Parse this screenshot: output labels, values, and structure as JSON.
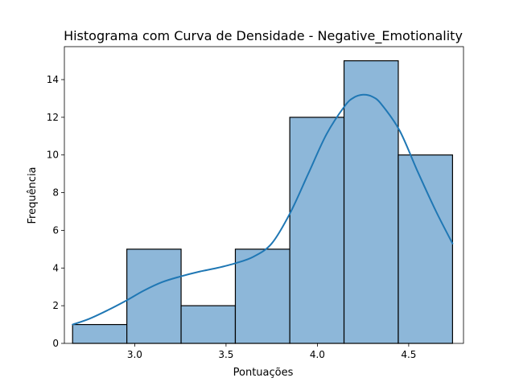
{
  "chart_data": {
    "type": "bar",
    "title": "Histograma com Curva de Densidade - Negative_Emotionality",
    "xlabel": "Pontuações",
    "ylabel": "Frequência",
    "xlim": [
      2.615,
      4.8
    ],
    "ylim": [
      0,
      15.75
    ],
    "xticks": [
      3.0,
      3.5,
      4.0,
      4.5
    ],
    "xtick_labels": [
      "3.0",
      "3.5",
      "4.0",
      "4.5"
    ],
    "yticks": [
      0,
      2,
      4,
      6,
      8,
      10,
      12,
      14
    ],
    "ytick_labels": [
      "0",
      "2",
      "4",
      "6",
      "8",
      "10",
      "12",
      "14"
    ],
    "grid": false,
    "bins": [
      {
        "x0": 2.66,
        "x1": 2.957,
        "count": 1
      },
      {
        "x0": 2.957,
        "x1": 3.254,
        "count": 5
      },
      {
        "x0": 3.254,
        "x1": 3.551,
        "count": 2
      },
      {
        "x0": 3.551,
        "x1": 3.849,
        "count": 5
      },
      {
        "x0": 3.849,
        "x1": 4.146,
        "count": 12
      },
      {
        "x0": 4.146,
        "x1": 4.443,
        "count": 15
      },
      {
        "x0": 4.443,
        "x1": 4.74,
        "count": 10
      }
    ],
    "density_curve": {
      "x": [
        2.66,
        2.75,
        2.85,
        2.95,
        3.05,
        3.15,
        3.25,
        3.35,
        3.45,
        3.55,
        3.65,
        3.75,
        3.85,
        3.95,
        4.05,
        4.15,
        4.2,
        4.25,
        4.3,
        4.35,
        4.45,
        4.55,
        4.65,
        4.74
      ],
      "y": [
        1.0,
        1.3,
        1.75,
        2.25,
        2.8,
        3.25,
        3.55,
        3.8,
        4.0,
        4.25,
        4.6,
        5.3,
        6.9,
        9.0,
        11.1,
        12.6,
        13.05,
        13.2,
        13.1,
        12.7,
        11.3,
        9.1,
        7.0,
        5.3
      ]
    },
    "colors": {
      "bar_fill": "#8db7d9",
      "bar_edge": "#000000",
      "curve": "#1f77b4"
    }
  }
}
